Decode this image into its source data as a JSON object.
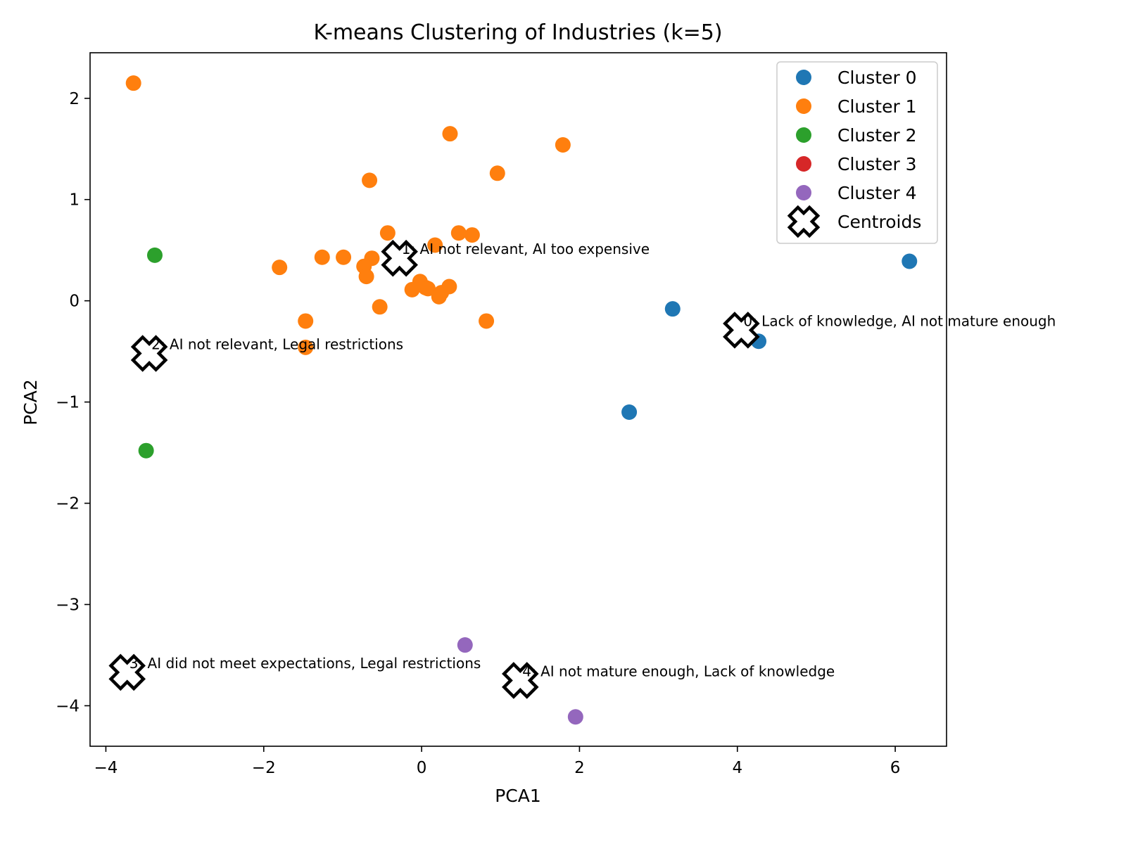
{
  "chart_data": {
    "type": "scatter",
    "title": "K-means Clustering of Industries (k=5)",
    "xlabel": "PCA1",
    "ylabel": "PCA2",
    "xlim": [
      -4.2,
      6.65
    ],
    "ylim": [
      -4.4,
      2.45
    ],
    "xticks": [
      -4,
      -2,
      0,
      2,
      4,
      6
    ],
    "yticks": [
      2,
      1,
      0,
      -1,
      -2,
      -3,
      -4
    ],
    "xtick_labels": [
      "−4",
      "−2",
      "0",
      "2",
      "4",
      "6"
    ],
    "ytick_labels": [
      "2",
      "1",
      "0",
      "−1",
      "−2",
      "−3",
      "−4"
    ],
    "grid": false,
    "legend_position": "top-right",
    "series": [
      {
        "name": "Cluster 0",
        "color": "#1f77b4",
        "points": [
          [
            6.18,
            0.39
          ],
          [
            3.18,
            -0.08
          ],
          [
            4.27,
            -0.4
          ],
          [
            2.63,
            -1.1
          ]
        ]
      },
      {
        "name": "Cluster 1",
        "color": "#ff7f0e",
        "points": [
          [
            -3.65,
            2.15
          ],
          [
            0.36,
            1.65
          ],
          [
            1.79,
            1.54
          ],
          [
            0.96,
            1.26
          ],
          [
            -0.66,
            1.19
          ],
          [
            -0.43,
            0.67
          ],
          [
            0.47,
            0.67
          ],
          [
            0.64,
            0.65
          ],
          [
            0.17,
            0.55
          ],
          [
            -1.8,
            0.33
          ],
          [
            -1.26,
            0.43
          ],
          [
            -0.99,
            0.43
          ],
          [
            -0.63,
            0.42
          ],
          [
            -0.73,
            0.34
          ],
          [
            -0.7,
            0.24
          ],
          [
            -0.02,
            0.19
          ],
          [
            0.05,
            0.13
          ],
          [
            -0.12,
            0.11
          ],
          [
            0.08,
            0.12
          ],
          [
            0.35,
            0.14
          ],
          [
            0.25,
            0.08
          ],
          [
            0.22,
            0.04
          ],
          [
            -0.53,
            -0.06
          ],
          [
            0.82,
            -0.2
          ],
          [
            -1.47,
            -0.2
          ],
          [
            -1.47,
            -0.46
          ]
        ]
      },
      {
        "name": "Cluster 2",
        "color": "#2ca02c",
        "points": [
          [
            -3.38,
            0.45
          ],
          [
            -3.49,
            -1.48
          ]
        ]
      },
      {
        "name": "Cluster 3",
        "color": "#d62728",
        "points": []
      },
      {
        "name": "Cluster 4",
        "color": "#9467bd",
        "points": [
          [
            0.55,
            -3.4
          ],
          [
            1.95,
            -4.11
          ]
        ]
      }
    ],
    "centroids": {
      "name": "Centroids",
      "points": [
        {
          "x": -0.28,
          "y": 0.42,
          "label": "1: AI not relevant, AI too expensive"
        },
        {
          "x": 4.05,
          "y": -0.29,
          "label": "0: Lack of knowledge, AI not mature enough"
        },
        {
          "x": -3.45,
          "y": -0.52,
          "label": "2: AI not relevant, Legal restrictions"
        },
        {
          "x": -3.73,
          "y": -3.67,
          "label": "3: AI did not meet expectations, Legal restrictions"
        },
        {
          "x": 1.25,
          "y": -3.75,
          "label": "4: AI not mature enough, Lack of knowledge"
        }
      ]
    }
  }
}
